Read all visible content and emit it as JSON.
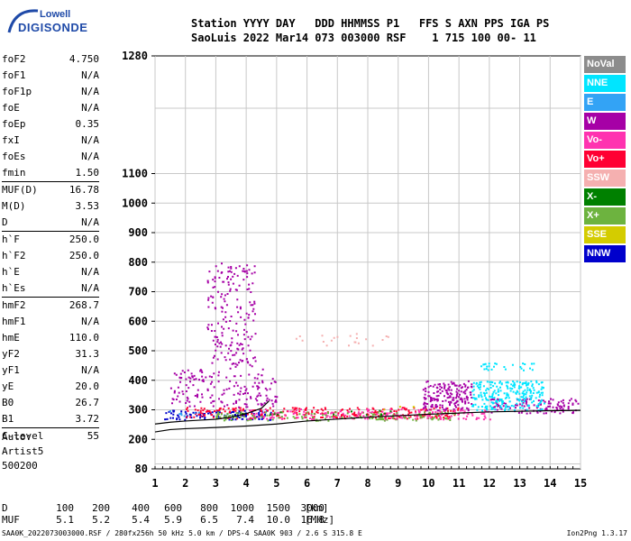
{
  "logo": {
    "line1": "Lowell",
    "line2": "DIGISONDE"
  },
  "header": {
    "line1": "Station YYYY DAY   DDD HHMMSS P1   FFS S AXN PPS IGA PS",
    "line2": "SaoLuis 2022 Mar14 073 003000 RSF    1 715 100 00- 11"
  },
  "params": [
    [
      {
        "label": "foF2",
        "value": "4.750"
      },
      {
        "label": "foF1",
        "value": "N/A"
      },
      {
        "label": "foF1p",
        "value": "N/A"
      },
      {
        "label": "foE",
        "value": "N/A"
      },
      {
        "label": "foEp",
        "value": "0.35"
      },
      {
        "label": "fxI",
        "value": "N/A"
      },
      {
        "label": "foEs",
        "value": "N/A"
      },
      {
        "label": "fmin",
        "value": "1.50"
      }
    ],
    [
      {
        "label": "MUF(D)",
        "value": "16.78"
      },
      {
        "label": "M(D)",
        "value": "3.53"
      },
      {
        "label": "D",
        "value": "N/A"
      }
    ],
    [
      {
        "label": "h`F",
        "value": "250.0"
      },
      {
        "label": "h`F2",
        "value": "250.0"
      },
      {
        "label": "h`E",
        "value": "N/A"
      },
      {
        "label": "h`Es",
        "value": "N/A"
      }
    ],
    [
      {
        "label": "hmF2",
        "value": "268.7"
      },
      {
        "label": "hmF1",
        "value": "N/A"
      },
      {
        "label": "hmE",
        "value": "110.0"
      },
      {
        "label": "yF2",
        "value": "31.3"
      },
      {
        "label": "yF1",
        "value": "N/A"
      },
      {
        "label": "yE",
        "value": "20.0"
      },
      {
        "label": "B0",
        "value": "26.7"
      },
      {
        "label": "B1",
        "value": "3.72"
      }
    ],
    [
      {
        "label": "C-level",
        "value": "55"
      }
    ]
  ],
  "auto": {
    "line1": "Auto:",
    "line2": "Artist5",
    "line3": "500200"
  },
  "legend": [
    {
      "label": "NoVal",
      "color": "#8c8c8c"
    },
    {
      "label": "NNE",
      "color": "#00e5ff"
    },
    {
      "label": "E",
      "color": "#33a3f5"
    },
    {
      "label": "W",
      "color": "#a600a6"
    },
    {
      "label": "Vo-",
      "color": "#ff33b0"
    },
    {
      "label": "Vo+",
      "color": "#ff0033"
    },
    {
      "label": "SSW",
      "color": "#f5b0b0"
    },
    {
      "label": "X-",
      "color": "#008000"
    },
    {
      "label": "X+",
      "color": "#6db33f"
    },
    {
      "label": "SSE",
      "color": "#d4cc00"
    },
    {
      "label": "NNW",
      "color": "#0000cc"
    }
  ],
  "dmuf": {
    "d_label": "D",
    "d_values": [
      "100",
      "200",
      "400",
      "600",
      "800",
      "1000",
      "1500",
      "3000",
      "[km]"
    ],
    "muf_label": "MUF",
    "muf_values": [
      "5.1",
      "5.2",
      "5.4",
      "5.9",
      "6.5",
      "7.4",
      "10.0",
      "16.8",
      "[MHz]"
    ]
  },
  "footer": "SAA0K_2022073003000.RSF / 280fx256h 50 kHz 5.0 km / DPS-4 SAA0K 903 / 2.6 S 315.8 E",
  "version": "Ion2Png 1.3.17",
  "chart_data": {
    "type": "scatter",
    "title": "",
    "xlabel": "",
    "ylabel": "",
    "xlim": [
      1,
      15
    ],
    "ylim": [
      80,
      1280
    ],
    "xticks": [
      "1",
      "2",
      "3",
      "4",
      "5",
      "6",
      "7",
      "8",
      "9",
      "10",
      "11",
      "12",
      "13",
      "14",
      "15"
    ],
    "yticks": [
      "80",
      "200",
      "300",
      "400",
      "500",
      "600",
      "700",
      "800",
      "900",
      "1000",
      "1100",
      "1280"
    ],
    "ytick_values": [
      80,
      200,
      300,
      400,
      500,
      600,
      700,
      800,
      900,
      1000,
      1100,
      1280
    ],
    "grid": true,
    "ionogram_trace": {
      "x": [
        1.0,
        1.5,
        2.0,
        2.5,
        3.0,
        3.5,
        4.0,
        4.5,
        4.75
      ],
      "y": [
        252,
        258,
        262,
        265,
        268,
        275,
        287,
        305,
        330
      ]
    },
    "profile_curve": {
      "x": [
        1.0,
        1.5,
        2.0,
        3.0,
        4.0,
        5.0,
        6.0,
        8.0,
        10.0,
        12.0,
        14.0,
        15.0
      ],
      "y": [
        225,
        233,
        236,
        240,
        245,
        252,
        262,
        275,
        285,
        293,
        297,
        298
      ]
    },
    "echo_regions": [
      {
        "series": "NNW",
        "x": [
          1.3,
          4.8
        ],
        "y": [
          268,
          300
        ],
        "density": 0.55
      },
      {
        "series": "Vo+",
        "x": [
          2.0,
          11.0
        ],
        "y": [
          272,
          310
        ],
        "density": 0.45
      },
      {
        "series": "X+",
        "x": [
          3.0,
          11.0
        ],
        "y": [
          265,
          295
        ],
        "density": 0.35
      },
      {
        "series": "Vo-",
        "x": [
          4.0,
          12.0
        ],
        "y": [
          270,
          305
        ],
        "density": 0.3
      },
      {
        "series": "W",
        "x": [
          1.5,
          5.0
        ],
        "y": [
          310,
          440
        ],
        "density": 0.2
      },
      {
        "series": "W",
        "x": [
          2.7,
          4.3
        ],
        "y": [
          440,
          800
        ],
        "density": 0.18
      },
      {
        "series": "W",
        "x": [
          9.8,
          11.4
        ],
        "y": [
          300,
          400
        ],
        "density": 0.6
      },
      {
        "series": "W",
        "x": [
          12.0,
          14.9
        ],
        "y": [
          290,
          340
        ],
        "density": 0.45
      },
      {
        "series": "NNE",
        "x": [
          11.4,
          13.8
        ],
        "y": [
          300,
          400
        ],
        "density": 0.55
      },
      {
        "series": "NNE",
        "x": [
          11.6,
          13.5
        ],
        "y": [
          435,
          460
        ],
        "density": 0.3
      },
      {
        "series": "X-",
        "x": [
          3.5,
          9.0
        ],
        "y": [
          285,
          300
        ],
        "density": 0.08
      },
      {
        "series": "SSE",
        "x": [
          8.5,
          9.5
        ],
        "y": [
          300,
          320
        ],
        "density": 0.1
      },
      {
        "series": "SSW",
        "x": [
          5.5,
          9.0
        ],
        "y": [
          520,
          560
        ],
        "density": 0.08
      },
      {
        "series": "E",
        "x": [
          1.2,
          2.5
        ],
        "y": [
          280,
          300
        ],
        "density": 0.15
      }
    ]
  }
}
